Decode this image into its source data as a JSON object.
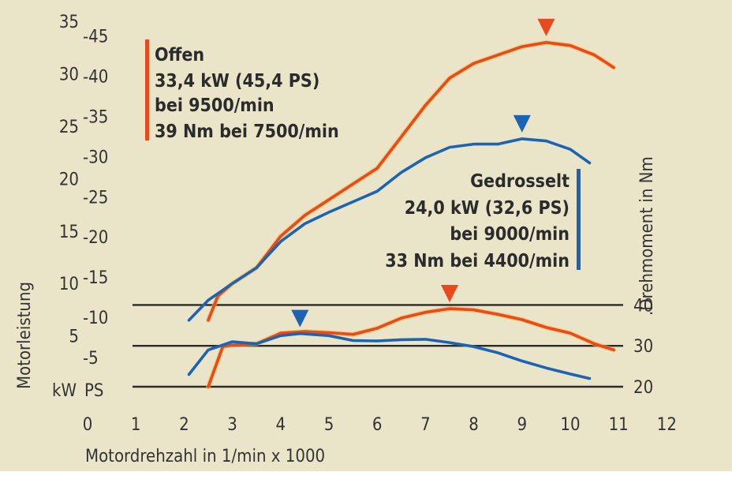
{
  "chart_data": {
    "type": "line",
    "xlabel": "Motordrehzahl in 1/min x 1000",
    "ylabel_left": "Motorleistung",
    "ylabel_right": "Drehmoment in Nm",
    "unit_kw": "kW",
    "unit_ps": "PS",
    "xlim": [
      0,
      12
    ],
    "x_ticks": [
      "0",
      "1",
      "2",
      "3",
      "4",
      "5",
      "6",
      "7",
      "8",
      "9",
      "10",
      "11",
      "12"
    ],
    "kw_ticks": [
      "35",
      "30",
      "25",
      "20",
      "15",
      "10",
      "5"
    ],
    "ps_ticks": [
      "-45",
      "-40",
      "-35",
      "-30",
      "-25",
      "-20",
      "-15",
      "-10",
      "-5"
    ],
    "nm_ticks": [
      "40",
      "30",
      "20"
    ],
    "colors": {
      "offen": "#e8491f",
      "gedrosselt": "#1d63b4",
      "background": "#eae5c9",
      "grid": "#2a2a2a"
    },
    "legend_offen": {
      "title": "Offen",
      "power": "33,4 kW (45,4 PS)",
      "rpm": "bei 9500/min",
      "torque": "39 Nm bei 7500/min"
    },
    "legend_gedrosselt": {
      "title": "Gedrosselt",
      "power": "24,0 kW (32,6 PS)",
      "rpm": "bei 9000/min",
      "torque": "33 Nm bei 4400/min"
    },
    "series": [
      {
        "name": "Offen",
        "metric": "power_kW",
        "color": "#e8491f",
        "x": [
          2.5,
          2.7,
          3.0,
          3.5,
          4.0,
          4.5,
          5.0,
          5.5,
          6.0,
          6.5,
          7.0,
          7.5,
          8.0,
          8.5,
          9.0,
          9.5,
          10.0,
          10.5,
          10.9
        ],
        "y": [
          6.5,
          8.8,
          10.0,
          11.5,
          14.5,
          16.5,
          18.0,
          19.5,
          21.0,
          24.0,
          27.0,
          29.6,
          31.0,
          31.8,
          32.6,
          33.0,
          32.7,
          31.8,
          30.6
        ]
      },
      {
        "name": "Gedrosselt",
        "metric": "power_kW",
        "color": "#1d63b4",
        "x": [
          2.1,
          2.5,
          3.0,
          3.5,
          4.0,
          4.5,
          5.0,
          5.5,
          6.0,
          6.5,
          7.0,
          7.5,
          8.0,
          8.5,
          9.0,
          9.5,
          10.0,
          10.4
        ],
        "y": [
          6.5,
          8.4,
          10.0,
          11.5,
          14.0,
          15.7,
          16.8,
          17.8,
          18.8,
          20.6,
          22.0,
          23.0,
          23.3,
          23.3,
          23.8,
          23.6,
          22.8,
          21.5
        ]
      },
      {
        "name": "Offen",
        "metric": "torque_Nm",
        "color": "#e8491f",
        "x": [
          2.5,
          2.8,
          3.0,
          3.5,
          4.0,
          4.5,
          5.0,
          5.5,
          6.0,
          6.5,
          7.0,
          7.5,
          8.0,
          8.5,
          9.0,
          9.5,
          10.0,
          10.5,
          10.9
        ],
        "y": [
          20.0,
          29.8,
          30.2,
          30.5,
          33.1,
          33.5,
          33.2,
          32.8,
          34.3,
          36.8,
          38.2,
          39.1,
          38.8,
          37.7,
          36.4,
          34.5,
          33.1,
          30.5,
          29.0
        ]
      },
      {
        "name": "Gedrosselt",
        "metric": "torque_Nm",
        "color": "#1d63b4",
        "x": [
          2.1,
          2.5,
          3.0,
          3.5,
          4.0,
          4.4,
          5.0,
          5.5,
          6.0,
          6.5,
          7.0,
          7.5,
          8.0,
          8.5,
          9.0,
          9.5,
          10.0,
          10.4
        ],
        "y": [
          23.0,
          29.0,
          31.0,
          30.5,
          32.5,
          33.0,
          32.5,
          31.3,
          31.2,
          31.5,
          31.6,
          30.8,
          29.8,
          28.3,
          26.3,
          24.6,
          23.1,
          22.0
        ]
      }
    ],
    "markers": [
      {
        "series": "Offen",
        "metric": "power_kW",
        "x": 9.5
      },
      {
        "series": "Gedrosselt",
        "metric": "power_kW",
        "x": 9.0
      },
      {
        "series": "Offen",
        "metric": "torque_Nm",
        "x": 7.5
      },
      {
        "series": "Gedrosselt",
        "metric": "torque_Nm",
        "x": 4.4
      }
    ],
    "grid": "horizontal lines at 20, 30, 40 Nm",
    "legend": "Offen top-left, Gedrosselt right"
  }
}
